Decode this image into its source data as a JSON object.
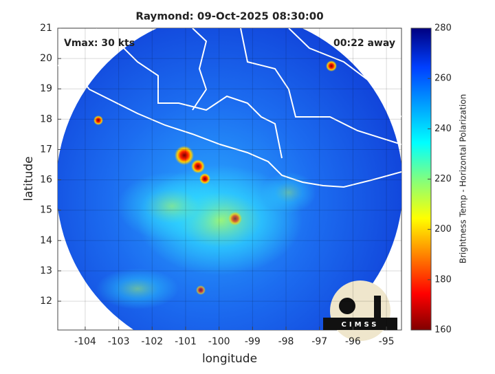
{
  "chart_data": {
    "type": "image",
    "title": "Raymond: 09-Oct-2025 08:30:00",
    "annotations": [
      "Vmax: 30 kts",
      "00:22 away"
    ],
    "xlabel": "longitude",
    "ylabel": "latitude",
    "xlim": [
      -104.82,
      -94.55
    ],
    "ylim": [
      11.05,
      21
    ],
    "xticks": [
      -104,
      -103,
      -102,
      -101,
      -100,
      -99,
      -98,
      -97,
      -96,
      -95
    ],
    "yticks": [
      12,
      13,
      14,
      15,
      16,
      17,
      18,
      19,
      20,
      21
    ],
    "grid": true,
    "colorbar": {
      "label": "Brightness Temp - Horizontal Polarization",
      "lim": [
        160,
        280
      ],
      "ticks": [
        160,
        180,
        200,
        220,
        240,
        260,
        280
      ]
    },
    "logo": "CIMSS"
  }
}
